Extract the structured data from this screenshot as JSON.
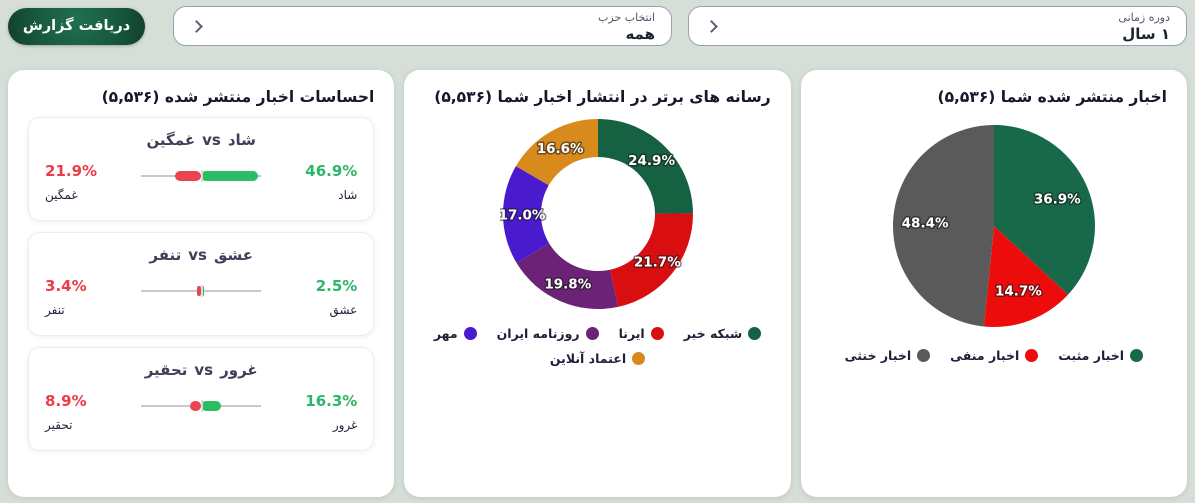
{
  "header": {
    "report_button": "دریافت گزارش",
    "party_select": {
      "label": "انتخاب حزب",
      "value": "همه"
    },
    "period_select": {
      "label": "دوره زمانی",
      "value": "۱ سال"
    }
  },
  "sentiments": {
    "title": "احساسات اخبار منتشر شده (۵,۵۳۶)",
    "vs": "vs",
    "sliders": [
      {
        "left": {
          "display": "21.9%",
          "percent": 21.9,
          "label": "غمگین"
        },
        "right": {
          "display": "46.9%",
          "percent": 46.9,
          "label": "شاد"
        }
      },
      {
        "left": {
          "display": "3.4%",
          "percent": 3.4,
          "label": "تنفر"
        },
        "right": {
          "display": "2.5%",
          "percent": 2.5,
          "label": "عشق"
        }
      },
      {
        "left": {
          "display": "8.9%",
          "percent": 8.9,
          "label": "تحقیر"
        },
        "right": {
          "display": "16.3%",
          "percent": 16.3,
          "label": "غرور"
        }
      }
    ],
    "bar_colors": {
      "negative": "#e8454f",
      "positive": "#2abd63"
    }
  },
  "chart_data": [
    {
      "type": "donut",
      "title": "رسانه های برتر در انتشار اخبار شما (۵,۵۳۶)",
      "legend_position": "bottom",
      "series": [
        {
          "label": "شبکه خبر",
          "value": 24.9,
          "display": "24.9%",
          "color": "#156142"
        },
        {
          "label": "ایرنا",
          "value": 21.7,
          "display": "21.7%",
          "color": "#d90e11"
        },
        {
          "label": "روزنامه ایران",
          "value": 19.8,
          "display": "19.8%",
          "color": "#6c2377"
        },
        {
          "label": "مهر",
          "value": 17.0,
          "display": "17.0%",
          "color": "#4a1ace"
        },
        {
          "label": "اعتماد آنلاین",
          "value": 16.6,
          "display": "16.6%",
          "color": "#d98a1c"
        }
      ]
    },
    {
      "type": "pie",
      "title": "اخبار منتشر شده شما (۵,۵۳۶)",
      "legend_position": "bottom",
      "series": [
        {
          "label": "اخبار مثبت",
          "value": 36.9,
          "display": "36.9%",
          "color": "#17694a"
        },
        {
          "label": "اخبار منفی",
          "value": 14.7,
          "display": "14.7%",
          "color": "#ec0c0c"
        },
        {
          "label": "اخبار خنثی",
          "value": 48.4,
          "display": "48.4%",
          "color": "#5a5a5a"
        }
      ]
    }
  ]
}
